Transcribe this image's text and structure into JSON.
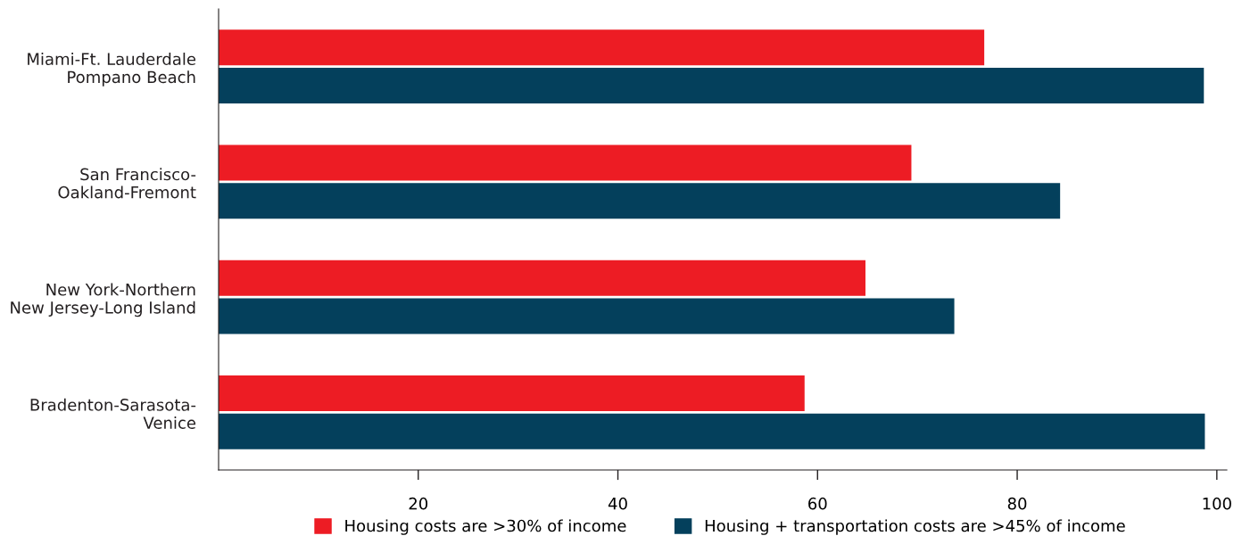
{
  "chart_data": {
    "type": "bar",
    "orientation": "horizontal",
    "categories": [
      "Miami-Ft. Lauderdale\nPompano Beach",
      "San Francisco-\nOakland-Fremont",
      "New York-Northern\nNew Jersey-Long Island",
      "Bradenton-Sarasota-\nVenice"
    ],
    "series": [
      {
        "name": "Housing costs are >30% of income",
        "color": "#ed1c24",
        "values": [
          76.7,
          69.4,
          64.8,
          58.7
        ]
      },
      {
        "name": "Housing + transportation costs are >45% of income",
        "color": "#04405c",
        "values": [
          98.7,
          84.3,
          73.7,
          98.8
        ]
      }
    ],
    "xlim": [
      0,
      101
    ],
    "xticks": [
      20,
      40,
      60,
      80,
      100
    ],
    "grid": false,
    "legend": "bottom"
  }
}
